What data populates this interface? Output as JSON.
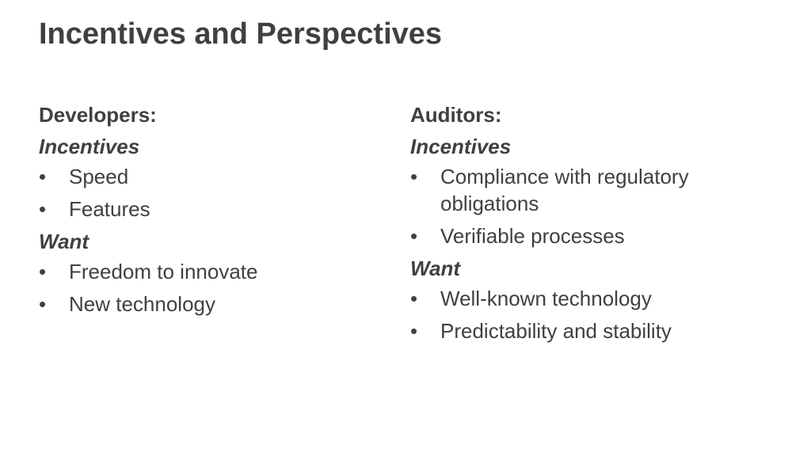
{
  "slide": {
    "title": "Incentives and Perspectives"
  },
  "developers": {
    "heading": "Developers:",
    "incentives_label": "Incentives",
    "incentives": [
      "Speed",
      "Features"
    ],
    "want_label": "Want",
    "want": [
      "Freedom to innovate",
      "New technology"
    ]
  },
  "auditors": {
    "heading": "Auditors:",
    "incentives_label": "Incentives",
    "incentives": [
      "Compliance with regulatory obligations",
      "Verifiable processes"
    ],
    "want_label": "Want",
    "want": [
      "Well-known technology",
      "Predictability and stability"
    ]
  },
  "bullet_glyph": "•"
}
